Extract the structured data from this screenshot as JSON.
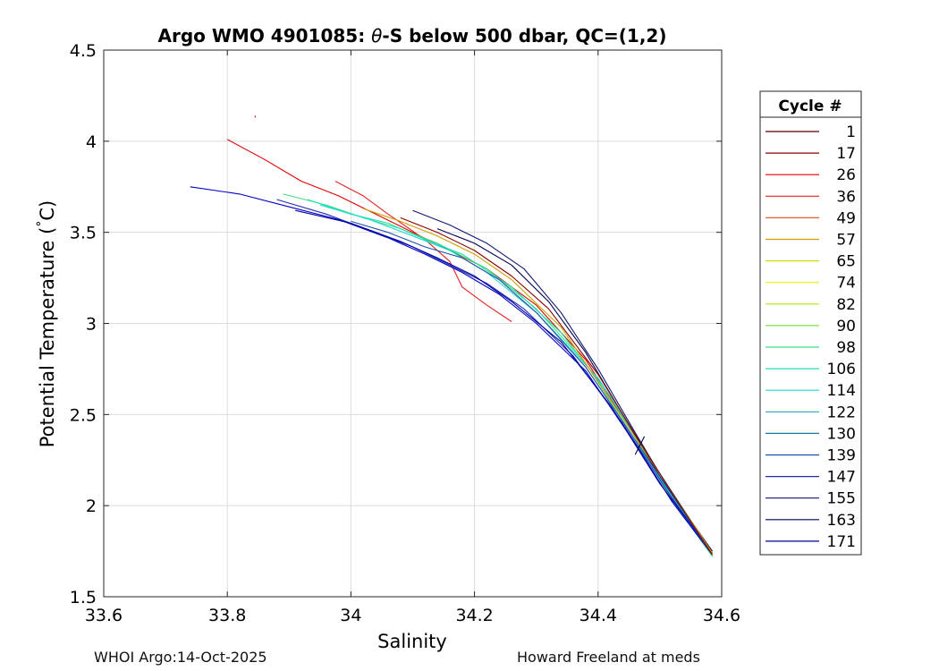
{
  "chart_data": {
    "type": "line",
    "title_parts": [
      "Argo WMO 4901085: ",
      "θ",
      "-S below 500 dbar,  QC=(1,2)"
    ],
    "xlabel": "Salinity",
    "ylabel_parts": [
      "Potential Temperature (",
      "°",
      "C)"
    ],
    "xlim": [
      33.6,
      34.6
    ],
    "ylim": [
      1.5,
      4.5
    ],
    "xticks": [
      "33.6",
      "33.8",
      "34",
      "34.2",
      "34.4",
      "34.6"
    ],
    "yticks": [
      "1.5",
      "2",
      "2.5",
      "3",
      "3.5",
      "4",
      "4.5"
    ],
    "grid": true,
    "legend": {
      "title": "Cycle #",
      "placement": "outside-right",
      "entries": [
        "1",
        "17",
        "26",
        "36",
        "49",
        "57",
        "65",
        "74",
        "82",
        "90",
        "98",
        "106",
        "114",
        "122",
        "130",
        "139",
        "147",
        "155",
        "163",
        "171"
      ],
      "colors": [
        "#5a0000",
        "#8b0000",
        "#e00000",
        "#e62020",
        "#e0602a",
        "#c8a000",
        "#d8d800",
        "#f0f000",
        "#b8e800",
        "#80e040",
        "#40e080",
        "#20e0b0",
        "#20d8d8",
        "#20a8c0",
        "#207898",
        "#2050a8",
        "#2030b0",
        "#101870",
        "#000050",
        "#0000a0"
      ]
    },
    "series": [
      {
        "color": "#e00000",
        "values": [
          [
            33.8,
            4.01
          ],
          [
            33.86,
            3.9
          ],
          [
            33.92,
            3.78
          ],
          [
            33.98,
            3.7
          ],
          [
            34.04,
            3.6
          ],
          [
            34.1,
            3.5
          ],
          [
            34.16,
            3.4
          ],
          [
            34.22,
            3.3
          ],
          [
            34.3,
            3.1
          ],
          [
            34.38,
            2.8
          ],
          [
            34.46,
            2.38
          ],
          [
            34.52,
            2.05
          ],
          [
            34.585,
            1.74
          ]
        ]
      },
      {
        "color": "#e62020",
        "values": [
          [
            33.975,
            3.78
          ],
          [
            34.02,
            3.7
          ],
          [
            34.06,
            3.6
          ],
          [
            34.12,
            3.46
          ],
          [
            34.16,
            3.34
          ],
          [
            34.18,
            3.2
          ],
          [
            34.22,
            3.1
          ],
          [
            34.26,
            3.01
          ]
        ]
      },
      {
        "color": "#40e080",
        "values": [
          [
            33.89,
            3.71
          ],
          [
            33.96,
            3.65
          ],
          [
            34.02,
            3.58
          ],
          [
            34.08,
            3.52
          ],
          [
            34.14,
            3.44
          ],
          [
            34.22,
            3.3
          ],
          [
            34.3,
            3.08
          ],
          [
            34.38,
            2.78
          ],
          [
            34.46,
            2.36
          ],
          [
            34.52,
            2.03
          ],
          [
            34.585,
            1.72
          ]
        ]
      },
      {
        "color": "#20e0b0",
        "values": [
          [
            33.93,
            3.68
          ],
          [
            34.0,
            3.6
          ],
          [
            34.06,
            3.55
          ],
          [
            34.12,
            3.46
          ],
          [
            34.18,
            3.38
          ],
          [
            34.26,
            3.2
          ],
          [
            34.34,
            2.95
          ],
          [
            34.42,
            2.6
          ],
          [
            34.5,
            2.15
          ],
          [
            34.585,
            1.73
          ]
        ]
      },
      {
        "color": "#20d8d8",
        "values": [
          [
            33.95,
            3.65
          ],
          [
            34.03,
            3.57
          ],
          [
            34.1,
            3.48
          ],
          [
            34.16,
            3.4
          ],
          [
            34.22,
            3.28
          ],
          [
            34.3,
            3.06
          ],
          [
            34.4,
            2.7
          ],
          [
            34.48,
            2.28
          ],
          [
            34.585,
            1.74
          ]
        ]
      },
      {
        "color": "#0000c8",
        "values": [
          [
            33.74,
            3.75
          ],
          [
            33.82,
            3.71
          ],
          [
            33.9,
            3.64
          ],
          [
            33.98,
            3.57
          ],
          [
            34.06,
            3.47
          ],
          [
            34.12,
            3.38
          ],
          [
            34.18,
            3.28
          ],
          [
            34.24,
            3.16
          ],
          [
            34.3,
            3.0
          ],
          [
            34.38,
            2.74
          ],
          [
            34.46,
            2.34
          ],
          [
            34.52,
            2.02
          ],
          [
            34.585,
            1.73
          ]
        ]
      },
      {
        "color": "#2030b0",
        "values": [
          [
            33.88,
            3.68
          ],
          [
            33.96,
            3.6
          ],
          [
            34.04,
            3.5
          ],
          [
            34.1,
            3.42
          ],
          [
            34.16,
            3.32
          ],
          [
            34.22,
            3.22
          ],
          [
            34.28,
            3.08
          ],
          [
            34.36,
            2.82
          ],
          [
            34.44,
            2.45
          ],
          [
            34.52,
            2.04
          ],
          [
            34.585,
            1.73
          ]
        ]
      },
      {
        "color": "#0000a0",
        "values": [
          [
            33.91,
            3.62
          ],
          [
            34.0,
            3.55
          ],
          [
            34.08,
            3.45
          ],
          [
            34.14,
            3.36
          ],
          [
            34.2,
            3.26
          ],
          [
            34.26,
            3.12
          ],
          [
            34.34,
            2.9
          ],
          [
            34.42,
            2.55
          ],
          [
            34.5,
            2.12
          ],
          [
            34.585,
            1.74
          ]
        ]
      },
      {
        "color": "#101870",
        "values": [
          [
            34.1,
            3.62
          ],
          [
            34.16,
            3.54
          ],
          [
            34.22,
            3.44
          ],
          [
            34.28,
            3.3
          ],
          [
            34.34,
            3.06
          ],
          [
            34.4,
            2.75
          ],
          [
            34.46,
            2.4
          ],
          [
            34.52,
            2.06
          ],
          [
            34.585,
            1.75
          ]
        ]
      },
      {
        "color": "#000050",
        "values": [
          [
            34.14,
            3.52
          ],
          [
            34.2,
            3.44
          ],
          [
            34.26,
            3.32
          ],
          [
            34.32,
            3.12
          ],
          [
            34.38,
            2.84
          ],
          [
            34.44,
            2.5
          ],
          [
            34.5,
            2.16
          ],
          [
            34.585,
            1.74
          ]
        ]
      },
      {
        "color": "#2050a8",
        "values": [
          [
            34.0,
            3.56
          ],
          [
            34.06,
            3.5
          ],
          [
            34.12,
            3.42
          ],
          [
            34.18,
            3.36
          ],
          [
            34.24,
            3.24
          ],
          [
            34.3,
            3.06
          ],
          [
            34.38,
            2.76
          ],
          [
            34.46,
            2.36
          ],
          [
            34.585,
            1.73
          ]
        ]
      },
      {
        "color": "#c8a000",
        "values": [
          [
            34.02,
            3.63
          ],
          [
            34.08,
            3.56
          ],
          [
            34.14,
            3.48
          ],
          [
            34.2,
            3.38
          ],
          [
            34.26,
            3.24
          ],
          [
            34.34,
            2.98
          ],
          [
            34.42,
            2.58
          ],
          [
            34.585,
            1.74
          ]
        ]
      },
      {
        "color": "#8b0000",
        "values": [
          [
            34.08,
            3.58
          ],
          [
            34.14,
            3.5
          ],
          [
            34.2,
            3.4
          ],
          [
            34.26,
            3.26
          ],
          [
            34.32,
            3.08
          ],
          [
            34.4,
            2.72
          ],
          [
            34.48,
            2.28
          ],
          [
            34.585,
            1.73
          ]
        ]
      },
      {
        "color": "#000050",
        "values": [
          [
            34.46,
            2.28
          ],
          [
            34.475,
            2.38
          ]
        ]
      },
      {
        "color": "#e00000",
        "values": [
          [
            33.845,
            4.13
          ],
          [
            33.845,
            4.14
          ]
        ]
      }
    ]
  },
  "footer": {
    "left": "WHOI Argo:14-Oct-2025",
    "right": "Howard Freeland at meds"
  }
}
